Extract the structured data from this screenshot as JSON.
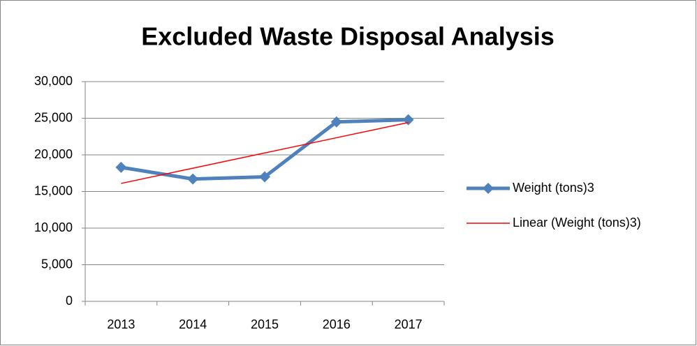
{
  "chart_data": {
    "type": "line",
    "title": "Excluded Waste Disposal Analysis",
    "categories": [
      "2013",
      "2014",
      "2015",
      "2016",
      "2017"
    ],
    "series": [
      {
        "name": "Weight (tons)3",
        "color": "#4f81bd",
        "values": [
          18300,
          16700,
          17000,
          24500,
          24800
        ]
      },
      {
        "name": "Linear (Weight (tons)3)",
        "color": "#ff0000",
        "values": [
          16100,
          18180,
          20260,
          22340,
          24420
        ]
      }
    ],
    "ylim": [
      0,
      30000
    ],
    "yticks": [
      0,
      {
        "value": 5000,
        "label": "5,000"
      },
      {
        "value": 10000,
        "label": "10,000"
      },
      {
        "value": 15000,
        "label": "15,000"
      },
      {
        "value": 20000,
        "label": "20,000"
      },
      {
        "value": 25000,
        "label": "25,000"
      },
      {
        "value": 30000,
        "label": "30,000"
      }
    ],
    "grid": true,
    "legend": "right"
  }
}
